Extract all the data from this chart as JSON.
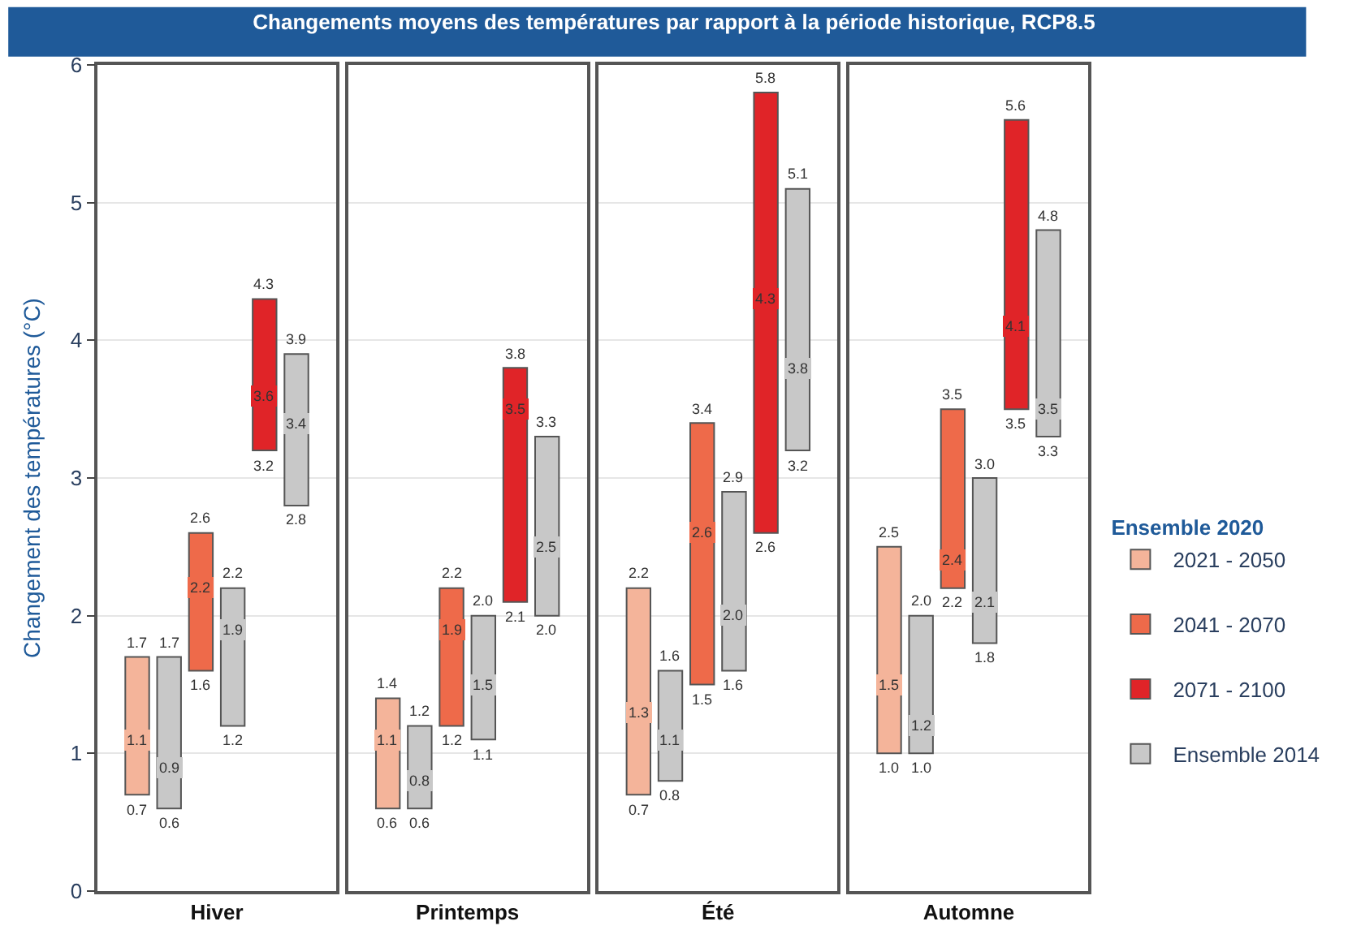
{
  "chart_data": {
    "type": "box",
    "title": "Changements moyens des températures par rapport à la période historique, RCP8.5",
    "ylabel": "Changement des températures (°C)",
    "legend_title": "Ensemble 2020",
    "categories": [
      "Hiver",
      "Printemps",
      "Été",
      "Automne"
    ],
    "ylim": [
      0,
      6
    ],
    "yticks": [
      0,
      1,
      2,
      3,
      4,
      5,
      6
    ],
    "grid": "y",
    "legend": "right",
    "series": [
      {
        "name": "2021 - 2050",
        "color": "#f4b49a",
        "boxes": [
          {
            "low": 0.7,
            "q1": 0.7,
            "median": 1.1,
            "q3": 1.7,
            "high": 1.7
          },
          {
            "low": 0.6,
            "q1": 0.6,
            "median": 1.1,
            "q3": 1.4,
            "high": 1.4
          },
          {
            "low": 0.7,
            "q1": 0.7,
            "median": 1.3,
            "q3": 2.2,
            "high": 2.2
          },
          {
            "low": 1.0,
            "q1": 1.0,
            "median": 1.5,
            "q3": 2.5,
            "high": 2.5
          }
        ]
      },
      {
        "name": "Ensemble 2014",
        "color": "#c8c8c8",
        "boxes": [
          {
            "low": 0.6,
            "q1": 0.6,
            "median": 0.9,
            "q3": 1.7,
            "high": 1.7
          },
          {
            "low": 0.6,
            "q1": 0.6,
            "median": 0.8,
            "q3": 1.2,
            "high": 1.2
          },
          {
            "low": 0.8,
            "q1": 0.8,
            "median": 1.1,
            "q3": 1.6,
            "high": 1.6
          },
          {
            "low": 1.0,
            "q1": 1.0,
            "median": 1.2,
            "q3": 2.0,
            "high": 2.0
          }
        ]
      },
      {
        "name": "2041 - 2070",
        "color": "#ee6a4a",
        "boxes": [
          {
            "low": 1.6,
            "q1": 1.6,
            "median": 2.2,
            "q3": 2.6,
            "high": 2.6
          },
          {
            "low": 1.2,
            "q1": 1.2,
            "median": 1.9,
            "q3": 2.2,
            "high": 2.2
          },
          {
            "low": 1.5,
            "q1": 1.5,
            "median": 2.6,
            "q3": 3.4,
            "high": 3.4
          },
          {
            "low": 2.2,
            "q1": 2.2,
            "median": 2.4,
            "q3": 3.5,
            "high": 3.5
          }
        ]
      },
      {
        "color": "#c8c8c8",
        "boxes": [
          {
            "low": 1.2,
            "q1": 1.2,
            "median": 1.9,
            "q3": 2.2,
            "high": 2.2
          },
          {
            "low": 1.1,
            "q1": 1.1,
            "median": 1.5,
            "q3": 2.0,
            "high": 2.0
          },
          {
            "low": 1.6,
            "q1": 1.6,
            "median": 2.0,
            "q3": 2.9,
            "high": 2.9
          },
          {
            "low": 1.8,
            "q1": 1.8,
            "median": 2.1,
            "q3": 3.0,
            "high": 3.0
          }
        ]
      },
      {
        "name": "2071 - 2100",
        "color": "#e02428",
        "boxes": [
          {
            "low": 3.2,
            "q1": 3.2,
            "median": 3.6,
            "q3": 4.3,
            "high": 4.3
          },
          {
            "low": 2.1,
            "q1": 2.1,
            "median": 3.5,
            "q3": 3.8,
            "high": 3.8
          },
          {
            "low": 2.6,
            "q1": 2.6,
            "median": 4.3,
            "q3": 5.8,
            "high": 5.8
          },
          {
            "low": 3.5,
            "q1": 3.5,
            "median": 4.1,
            "q3": 5.6,
            "high": 5.6
          }
        ]
      },
      {
        "color": "#c8c8c8",
        "boxes": [
          {
            "low": 2.8,
            "q1": 2.8,
            "median": 3.4,
            "q3": 3.9,
            "high": 3.9
          },
          {
            "low": 2.0,
            "q1": 2.0,
            "median": 2.5,
            "q3": 3.3,
            "high": 3.3
          },
          {
            "low": 3.2,
            "q1": 3.2,
            "median": 3.8,
            "q3": 5.1,
            "high": 5.1
          },
          {
            "low": 3.3,
            "q1": 3.3,
            "median": 3.5,
            "q3": 4.8,
            "high": 4.8
          }
        ]
      }
    ],
    "annotations": [
      "1.7",
      "1.1",
      "0.7",
      "1.7",
      "0.9",
      "0.6",
      "2.6",
      "2.2",
      "1.6",
      "2.2",
      "1.9",
      "1.2",
      "4.3",
      "3.6",
      "3.2",
      "3.9",
      "3.4",
      "2.8",
      "1.4",
      "1.1",
      "0.6",
      "1.2",
      "0.8",
      "0.6",
      "2.2",
      "1.9",
      "1.2",
      "2.0",
      "1.5",
      "1.1",
      "3.8",
      "3.5",
      "2.1",
      "3.3",
      "2.5",
      "2.0",
      "2.2",
      "1.3",
      "0.7",
      "1.6",
      "1.1",
      "0.8",
      "3.4",
      "2.6",
      "1.5",
      "2.9",
      "2.0",
      "1.6",
      "5.8",
      "4.3",
      "2.6",
      "5.1",
      "3.8",
      "3.2",
      "2.5",
      "1.5",
      "1.0",
      "2.0",
      "1.2",
      "1.0",
      "3.5",
      "2.4",
      "2.2",
      "3.0",
      "2.1",
      "1.8",
      "5.6",
      "4.1",
      "3.5",
      "4.8",
      "3.5",
      "3.3"
    ]
  }
}
